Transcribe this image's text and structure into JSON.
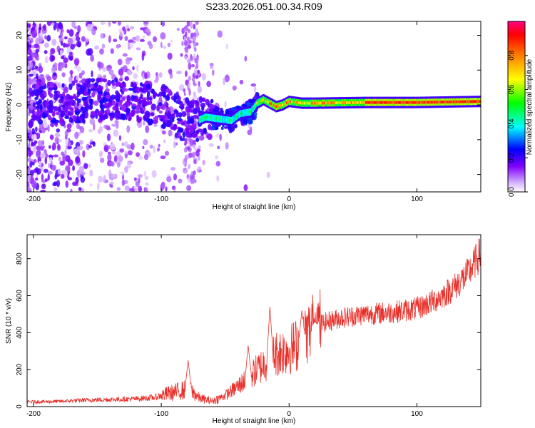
{
  "title": "S233.2026.051.00.34.R09",
  "chart_data": [
    {
      "type": "heatmap",
      "xlabel": "Height of straight line (km)",
      "ylabel": "Frequency (Hz)",
      "xlim": [
        -205,
        150
      ],
      "ylim": [
        -25,
        24
      ],
      "xticks": [
        -200,
        -100,
        0,
        100
      ],
      "yticks": [
        -20,
        -10,
        0,
        10,
        20
      ],
      "xtick_labels": [
        "-200",
        "-100",
        "0",
        "100"
      ],
      "ytick_labels": [
        "-20",
        "-10",
        "0",
        "10",
        "20"
      ],
      "ridge": [
        {
          "x": -200,
          "f": 1.0
        },
        {
          "x": -160,
          "f": 1.0
        },
        {
          "x": -130,
          "f": 2.0
        },
        {
          "x": -110,
          "f": 1.0
        },
        {
          "x": -95,
          "f": -1.0
        },
        {
          "x": -85,
          "f": -4.0
        },
        {
          "x": -75,
          "f": -5.0
        },
        {
          "x": -65,
          "f": -3.5
        },
        {
          "x": -55,
          "f": -4.0
        },
        {
          "x": -45,
          "f": -4.5
        },
        {
          "x": -38,
          "f": -2.5
        },
        {
          "x": -30,
          "f": -2.0
        },
        {
          "x": -25,
          "f": 0.5
        },
        {
          "x": -20,
          "f": 1.5
        },
        {
          "x": -15,
          "f": 0.5
        },
        {
          "x": -10,
          "f": -0.5
        },
        {
          "x": -5,
          "f": 0.0
        },
        {
          "x": 0,
          "f": 1.0
        },
        {
          "x": 10,
          "f": 0.5
        },
        {
          "x": 20,
          "f": 0.5
        },
        {
          "x": 60,
          "f": 0.7
        },
        {
          "x": 100,
          "f": 0.7
        },
        {
          "x": 150,
          "f": 1.0
        }
      ],
      "colorbar": {
        "label": "Normalized spectral amplitude",
        "range": [
          0,
          1
        ],
        "ticks": [
          0.0,
          0.2,
          0.4,
          0.6,
          0.8
        ],
        "tick_labels": [
          "0.0",
          "0.2",
          "0.4",
          "0.6",
          "0.8"
        ]
      }
    },
    {
      "type": "line",
      "xlabel": "Height of straight line (km)",
      "ylabel": "SNR (10 * v/v)",
      "xlim": [
        -205,
        150
      ],
      "ylim": [
        0,
        930
      ],
      "xticks": [
        -200,
        -100,
        0,
        100
      ],
      "yticks": [
        0,
        200,
        400,
        600,
        800
      ],
      "xtick_labels": [
        "-200",
        "-100",
        "0",
        "100"
      ],
      "ytick_labels": [
        "0",
        "200",
        "400",
        "600",
        "800"
      ],
      "color": "#e8302a",
      "series": [
        {
          "name": "SNR",
          "x": [
            -205,
            -180,
            -160,
            -140,
            -120,
            -105,
            -95,
            -85,
            -78,
            -70,
            -60,
            -50,
            -40,
            -30,
            -20,
            -12,
            -5,
            0,
            5,
            10,
            15,
            20,
            30,
            40,
            50,
            60,
            70,
            80,
            90,
            100,
            110,
            120,
            130,
            140,
            150
          ],
          "y": [
            25,
            28,
            35,
            38,
            42,
            50,
            70,
            85,
            95,
            45,
            30,
            60,
            110,
            170,
            230,
            280,
            300,
            310,
            330,
            355,
            400,
            440,
            460,
            480,
            490,
            500,
            505,
            510,
            520,
            530,
            560,
            600,
            650,
            720,
            830
          ]
        }
      ],
      "spikes": [
        {
          "x": -79,
          "y": 250
        },
        {
          "x": -32,
          "y": 330
        },
        {
          "x": -15,
          "y": 540
        },
        {
          "x": 10,
          "y": 520
        },
        {
          "x": 20,
          "y": 460
        }
      ]
    }
  ]
}
